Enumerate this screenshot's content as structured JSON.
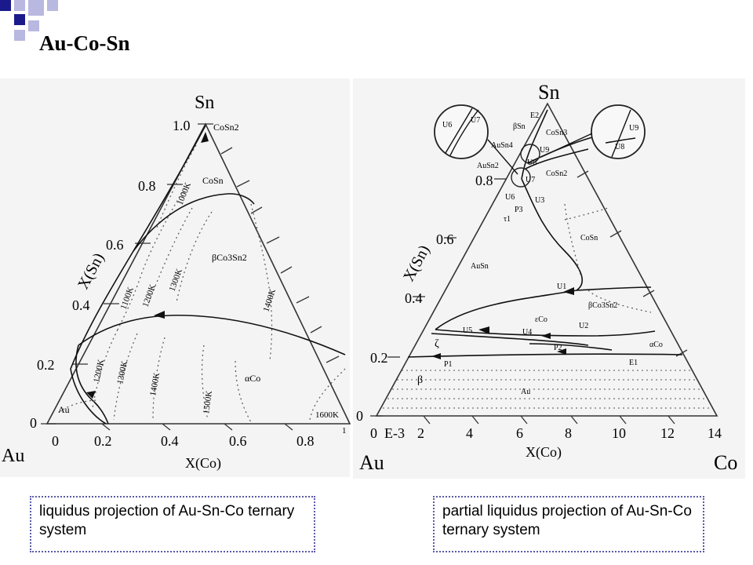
{
  "slide": {
    "title": "Au-Co-Sn",
    "caption_left": "liquidus projection of Au-Sn-Co ternary system",
    "caption_right": "partial liquidus projection of Au-Sn-Co ternary system",
    "colors": {
      "deco_dark": "#1a1a8c",
      "deco_light": "#b8b8e0",
      "caption_border": "#5a5aa8"
    }
  },
  "left_diagram": {
    "apex_top": "Sn",
    "corner_left": "Au",
    "axis_left_label": "X(Sn)",
    "axis_bottom_label": "X(Co)",
    "left_ticks": [
      "1.0",
      "0.8",
      "0.6",
      "0.4",
      "0.2",
      "0"
    ],
    "bottom_ticks": [
      "0",
      "0.2",
      "0.4",
      "0.6",
      "0.8",
      "1"
    ],
    "phases": [
      "CoSn2",
      "CoSn",
      "βCo3Sn2",
      "αCo",
      "Au"
    ],
    "isotherms": [
      "1000K",
      "1100K",
      "1200K",
      "1300K",
      "1400K",
      "1200K",
      "1300K",
      "1400K",
      "1500K",
      "1600K"
    ]
  },
  "right_diagram": {
    "apex_top": "Sn",
    "corner_left": "Au",
    "corner_right": "Co",
    "axis_left_label": "X(Sn)",
    "axis_bottom_label": "X(Co)",
    "axis_multiplier": "E-3",
    "left_ticks": [
      "0.8",
      "0.6",
      "0.4",
      "0.2",
      "0"
    ],
    "bottom_ticks": [
      "0",
      "2",
      "4",
      "6",
      "8",
      "10",
      "12",
      "14"
    ],
    "phases_top": [
      "E2",
      "βSn",
      "CoSn3",
      "AuSn4",
      "U9",
      "U8",
      "AuSn2",
      "CoSn2",
      "U7",
      "U6",
      "U3",
      "P3",
      "τ1"
    ],
    "inset_left": [
      "U6",
      "U7"
    ],
    "inset_right": [
      "U9",
      "U8"
    ],
    "phases_mid": [
      "CoSn",
      "AuSn",
      "U1",
      "βCo3Sn2",
      "U5",
      "εCo",
      "U2",
      "U4",
      "αCo",
      "ζ",
      "P2",
      "P1",
      "E1",
      "β",
      "Au"
    ]
  }
}
